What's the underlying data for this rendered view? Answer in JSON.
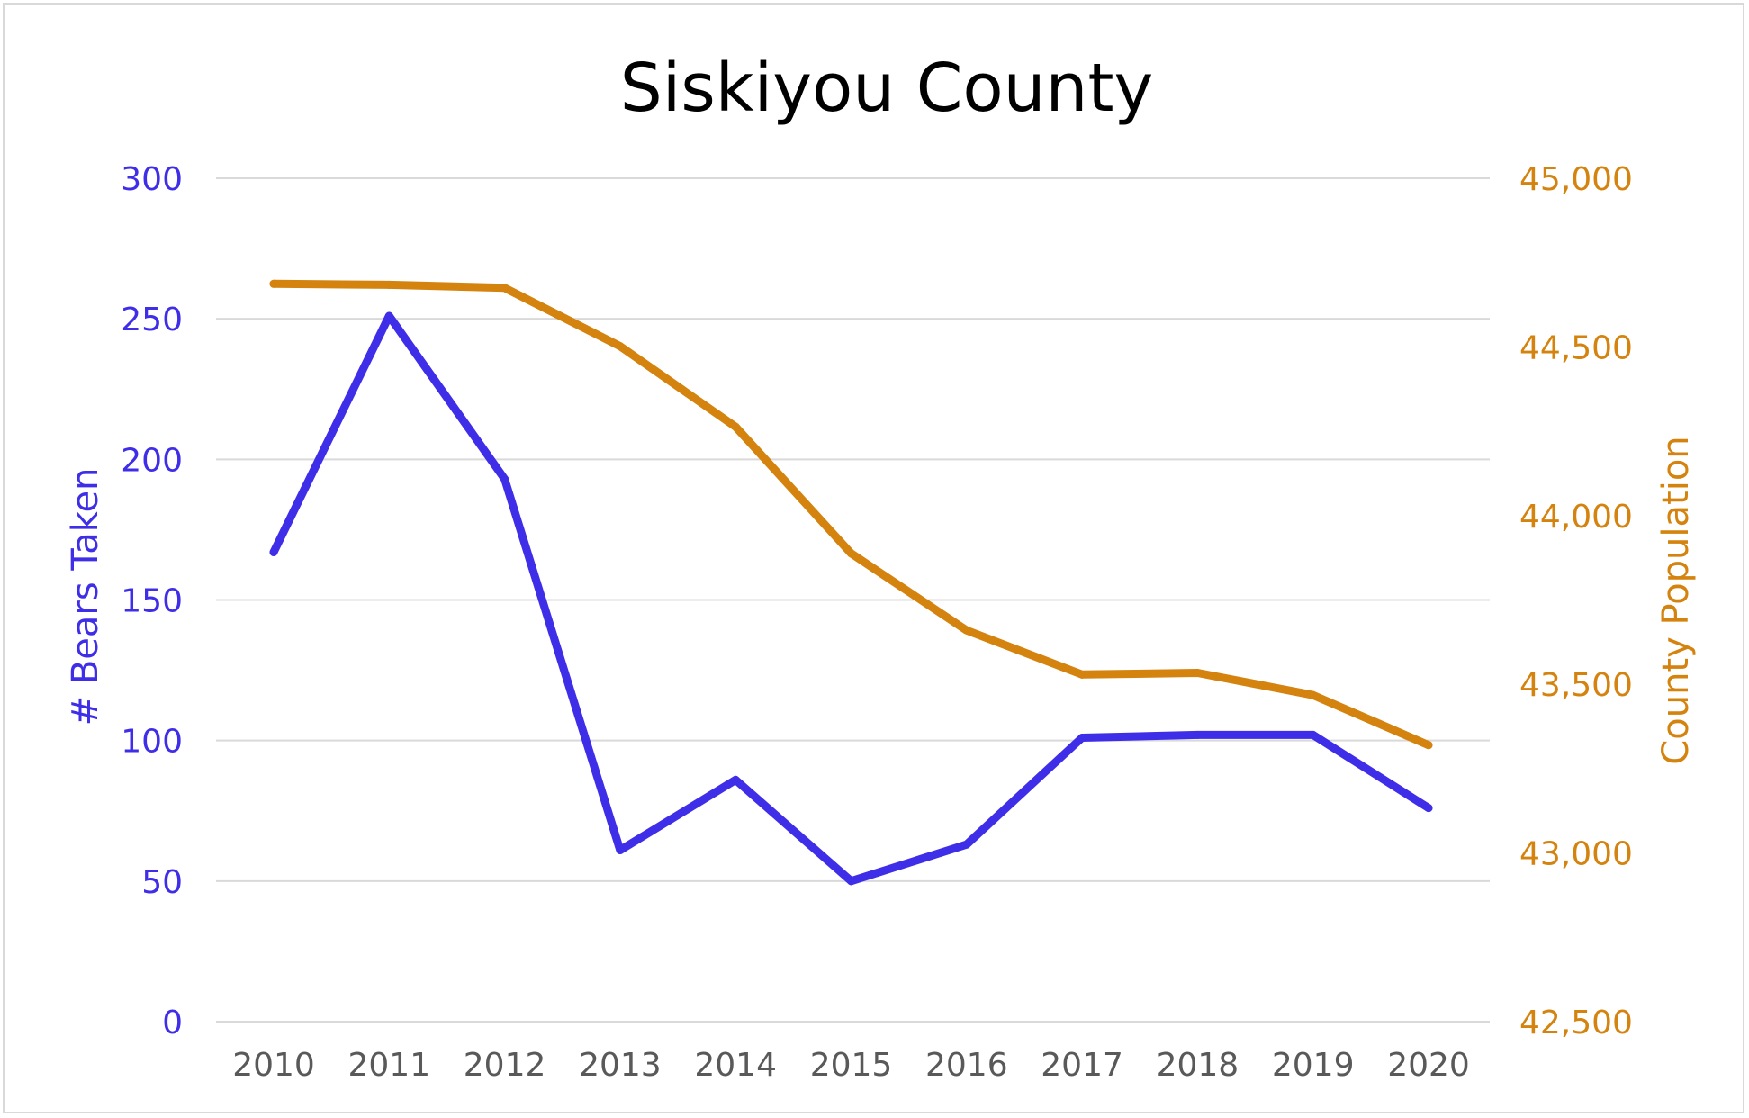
{
  "chart_data": {
    "type": "line",
    "title": "Siskiyou County",
    "x": [
      "2010",
      "2011",
      "2012",
      "2013",
      "2014",
      "2015",
      "2016",
      "2017",
      "2018",
      "2019",
      "2020"
    ],
    "series": [
      {
        "name": "# Bears Taken",
        "axis": "left",
        "color": "#3f2ee8",
        "values": [
          167,
          251,
          193,
          61,
          86,
          50,
          63,
          101,
          102,
          102,
          76
        ]
      },
      {
        "name": "County Population",
        "axis": "right",
        "color": "#d4830f",
        "values": [
          44687,
          44684,
          44675,
          44502,
          44263,
          43888,
          43660,
          43529,
          43534,
          43468,
          43320
        ]
      }
    ],
    "ylabel": "# Bears Taken",
    "y2label": "County Population",
    "ylim": [
      0,
      300
    ],
    "y2lim": [
      42500,
      45000
    ],
    "yticks": [
      "0",
      "50",
      "100",
      "150",
      "200",
      "250",
      "300"
    ],
    "y2ticks": [
      "42,500",
      "43,000",
      "43,500",
      "44,000",
      "44,500",
      "45,000"
    ],
    "grid": true,
    "legend": "none",
    "colors": {
      "left_axis": "#3f2ee8",
      "right_axis": "#d4830f",
      "gridline": "#d9d9d9",
      "x_ticks": "#595959"
    }
  }
}
